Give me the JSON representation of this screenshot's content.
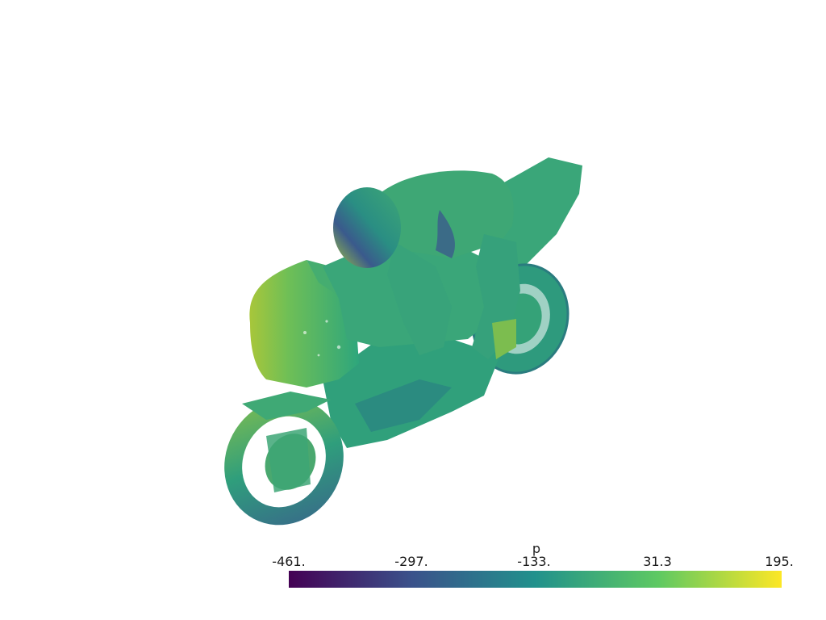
{
  "scene": {
    "object": "motorbike with rider",
    "surface_colormap": "viridis"
  },
  "scalar_bar": {
    "title": "p",
    "range": [
      -461,
      195
    ],
    "tick_labels": [
      "-461.",
      "-297.",
      "-133.",
      "31.3",
      "195."
    ],
    "colormap": [
      "#440154",
      "#3b528b",
      "#21918c",
      "#5ec962",
      "#fde725"
    ]
  }
}
